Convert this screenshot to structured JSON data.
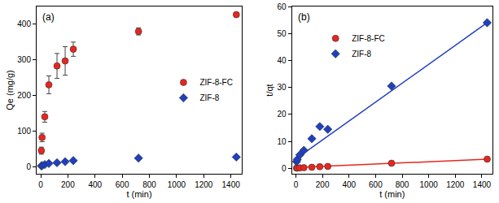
{
  "chart_data": [
    {
      "type": "scatter",
      "label": "(a)",
      "x_label": "t (min)",
      "y_label": "Qe (mg/g)",
      "xlim": [
        -30,
        1480
      ],
      "xticks": [
        0,
        200,
        400,
        600,
        800,
        1000,
        1200,
        1400
      ],
      "ylim": [
        -20,
        450
      ],
      "yticks": [
        0,
        100,
        200,
        300,
        400
      ],
      "legend": "right",
      "series": [
        {
          "name": "ZIF-8-FC",
          "color": "#e8261e",
          "marker": "circle",
          "x": [
            5,
            10,
            30,
            60,
            120,
            180,
            240,
            720,
            1440
          ],
          "values": [
            45,
            82,
            140,
            230,
            283,
            297,
            330,
            380,
            427
          ],
          "error": [
            10,
            12,
            15,
            25,
            35,
            40,
            20,
            10,
            5
          ]
        },
        {
          "name": "ZIF-8",
          "color": "#1f3fbf",
          "marker": "diamond",
          "x": [
            5,
            10,
            30,
            60,
            120,
            180,
            240,
            720,
            1440
          ],
          "values": [
            2,
            3,
            6,
            9,
            11,
            14,
            17,
            24,
            27
          ]
        }
      ]
    },
    {
      "type": "scatter",
      "label": "(b)",
      "x_label": "t (min)",
      "y_label": "t/qt",
      "xlim": [
        -30,
        1480
      ],
      "xticks": [
        0,
        200,
        400,
        600,
        800,
        1000,
        1200,
        1400
      ],
      "ylim": [
        -2,
        60
      ],
      "yticks": [
        0,
        10,
        20,
        30,
        40,
        50,
        60
      ],
      "legend": "upper left",
      "series": [
        {
          "name": "ZIF-8-FC",
          "color": "#e8261e",
          "marker": "circle",
          "x": [
            5,
            10,
            30,
            60,
            120,
            180,
            240,
            720,
            1440
          ],
          "values": [
            0.1,
            0.12,
            0.2,
            0.26,
            0.42,
            0.6,
            0.73,
            1.9,
            3.4
          ],
          "fit": {
            "x": [
              0,
              1440
            ],
            "values": [
              0.3,
              3.4
            ]
          }
        },
        {
          "name": "ZIF-8",
          "color": "#1f3fbf",
          "marker": "diamond",
          "x": [
            5,
            10,
            30,
            60,
            120,
            180,
            240,
            720,
            1440
          ],
          "values": [
            2.5,
            3.3,
            5,
            6.7,
            11,
            15.5,
            14.5,
            30.5,
            54
          ],
          "fit": {
            "x": [
              0,
              1440
            ],
            "values": [
              3.5,
              54
            ]
          }
        }
      ]
    }
  ]
}
